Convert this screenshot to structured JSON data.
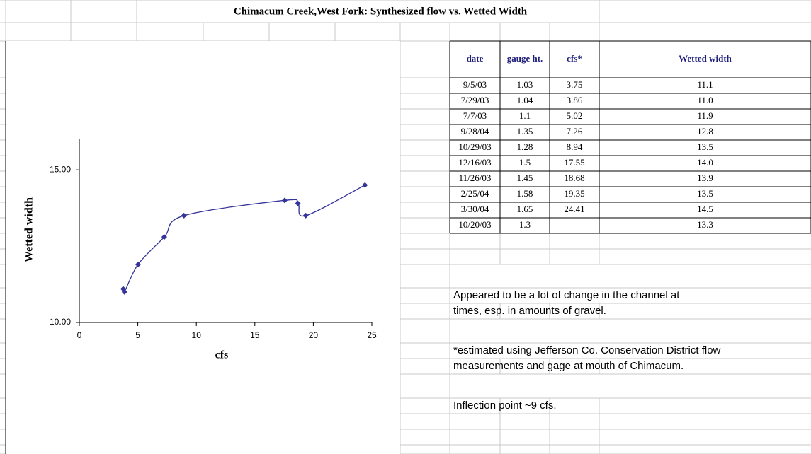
{
  "title": "Chimacum Creek,West Fork: Synthesized flow vs. Wetted Width",
  "chart_data": {
    "type": "scatter",
    "x_label": "cfs",
    "y_label": "Wetted width",
    "x": [
      3.75,
      3.86,
      5.02,
      7.26,
      8.94,
      17.55,
      18.68,
      19.35,
      24.41
    ],
    "series": [
      {
        "color": "#333399",
        "values": [
          11.1,
          11.0,
          11.9,
          12.8,
          13.5,
          14.0,
          13.9,
          13.5,
          14.5
        ]
      }
    ],
    "xlim": [
      0,
      25
    ],
    "xticks": [
      0,
      5,
      10,
      15,
      20,
      25
    ],
    "ylim": [
      10,
      16
    ],
    "yticks": [
      {
        "value": 10,
        "label": "10.00"
      },
      {
        "value": 15,
        "label": "15.00"
      }
    ],
    "smooth": true
  },
  "table": {
    "header": [
      "date",
      "gauge ht.",
      "cfs*",
      "Wetted width"
    ],
    "rows": [
      [
        "9/5/03",
        "1.03",
        "3.75",
        "11.1"
      ],
      [
        "7/29/03",
        "1.04",
        "3.86",
        "11.0"
      ],
      [
        "7/7/03",
        "1.1",
        "5.02",
        "11.9"
      ],
      [
        "9/28/04",
        "1.35",
        "7.26",
        "12.8"
      ],
      [
        "10/29/03",
        "1.28",
        "8.94",
        "13.5"
      ],
      [
        "12/16/03",
        "1.5",
        "17.55",
        "14.0"
      ],
      [
        "11/26/03",
        "1.45",
        "18.68",
        "13.9"
      ],
      [
        "2/25/04",
        "1.58",
        "19.35",
        "13.5"
      ],
      [
        "3/30/04",
        "1.65",
        "24.41",
        "14.5"
      ],
      [
        "10/20/03",
        "1.3",
        null,
        "13.3"
      ]
    ]
  },
  "notes": [
    "Appeared to be a lot of change in the channel at",
    "times, esp. in amounts of gravel.",
    "*estimated using Jefferson Co. Conservation District flow",
    "measurements and gage at mouth of Chimacum.",
    "Inflection point ~9 cfs."
  ]
}
